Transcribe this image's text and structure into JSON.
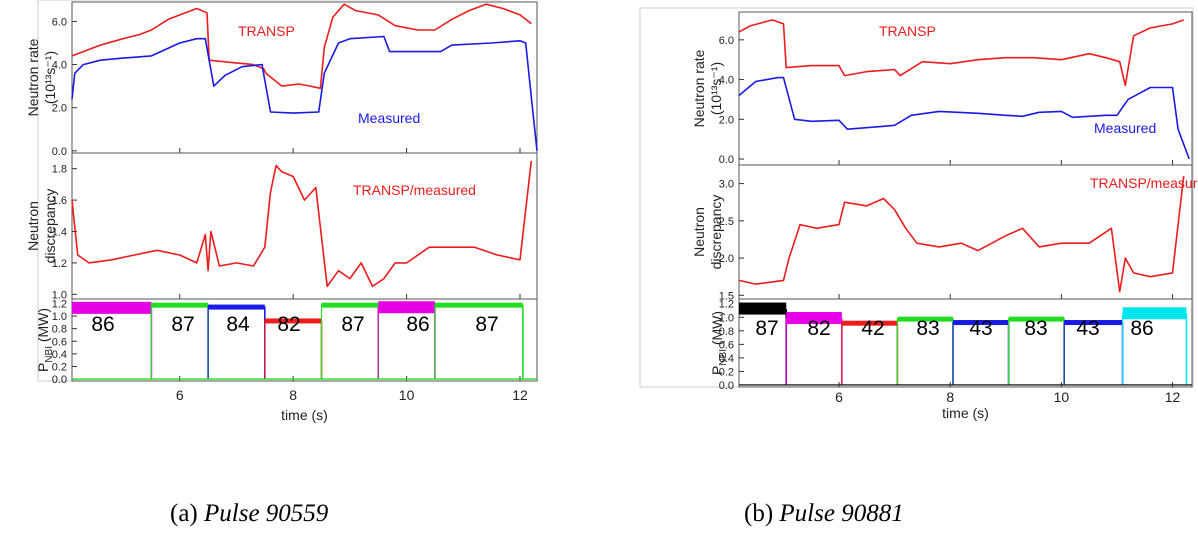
{
  "panels": [
    {
      "caption_prefix": "(a)",
      "caption_title": "Pulse 90559",
      "x_label": "time (s)",
      "x_ticks": [
        "6",
        "8",
        "10",
        "12"
      ],
      "subplots": [
        {
          "y_label_lines": [
            "Neutron rate",
            "(10¹³s⁻¹)"
          ],
          "y_ticks": [
            "0.0",
            "2.0",
            "4.0",
            "6.0"
          ],
          "annotations": [
            {
              "text": "TRANSP",
              "color": "#ee1c1c"
            },
            {
              "text": "Measured",
              "color": "#1a1ae6"
            }
          ]
        },
        {
          "y_label_lines": [
            "Neutron",
            "discrepancy"
          ],
          "y_ticks": [
            "1.0",
            "1.2",
            "1.4",
            "1.6",
            "1.8"
          ],
          "annotations": [
            {
              "text": "TRANSP/measured",
              "color": "#ee1c1c"
            }
          ]
        },
        {
          "y_label_main": "P",
          "y_label_sub": "NBI",
          "y_label_unit": " (MW)",
          "y_ticks": [
            "0.0",
            "0.2",
            "0.4",
            "0.6",
            "0.8",
            "1.0",
            "1.2"
          ],
          "segment_labels": [
            "86",
            "87",
            "84",
            "82",
            "87",
            "86",
            "87"
          ]
        }
      ]
    },
    {
      "caption_prefix": "(b)",
      "caption_title": "Pulse 90881",
      "x_label": "time (s)",
      "x_ticks": [
        "6",
        "8",
        "10",
        "12"
      ],
      "subplots": [
        {
          "y_label_lines": [
            "Neutron rate",
            "(10¹³s⁻¹)"
          ],
          "y_ticks": [
            "0.0",
            "2.0",
            "4.0",
            "6.0"
          ],
          "annotations": [
            {
              "text": "TRANSP",
              "color": "#ee1c1c"
            },
            {
              "text": "Measured",
              "color": "#1a1ae6"
            }
          ]
        },
        {
          "y_label_lines": [
            "Neutron",
            "discrepancy"
          ],
          "y_ticks": [
            "1.5",
            "2.0",
            "2.5",
            "3.0"
          ],
          "annotations": [
            {
              "text": "TRANSP/measured",
              "color": "#ee1c1c"
            }
          ]
        },
        {
          "y_label_main": "P",
          "y_label_sub": "NBI",
          "y_label_unit": " (MW)",
          "y_ticks": [
            "0.0",
            "0.2",
            "0.4",
            "0.6",
            "0.8",
            "1.0",
            "1.2"
          ],
          "segment_labels": [
            "87",
            "82",
            "42",
            "83",
            "43",
            "83",
            "43",
            "86"
          ]
        }
      ]
    }
  ],
  "chart_data": [
    {
      "type": "line",
      "title": "Neutron rate (10¹³s⁻¹) — Pulse 90559",
      "xlabel": "time (s)",
      "ylabel": "Neutron rate (10¹³s⁻¹)",
      "xlim": [
        4.1,
        12.3
      ],
      "ylim": [
        -0.1,
        6.9
      ],
      "series": [
        {
          "name": "TRANSP",
          "color": "#ee1c1c",
          "x": [
            4.1,
            4.3,
            4.6,
            5.0,
            5.3,
            5.5,
            5.8,
            6.1,
            6.3,
            6.48,
            6.52,
            6.9,
            7.3,
            7.48,
            7.52,
            7.8,
            8.1,
            8.3,
            8.48,
            8.55,
            8.7,
            8.9,
            9.1,
            9.5,
            9.8,
            10.2,
            10.5,
            10.8,
            11.1,
            11.4,
            11.7,
            12.0,
            12.2
          ],
          "y": [
            4.4,
            4.6,
            4.9,
            5.2,
            5.4,
            5.6,
            6.1,
            6.4,
            6.6,
            6.4,
            4.2,
            4.1,
            4.0,
            3.8,
            3.6,
            3.0,
            3.1,
            3.0,
            2.9,
            4.8,
            6.2,
            6.8,
            6.5,
            6.3,
            5.8,
            5.6,
            5.6,
            6.1,
            6.5,
            6.8,
            6.6,
            6.3,
            5.9
          ]
        },
        {
          "name": "Measured",
          "color": "#1a1ae6",
          "x": [
            4.1,
            4.15,
            4.3,
            4.6,
            5.0,
            5.5,
            6.0,
            6.3,
            6.45,
            6.6,
            6.8,
            7.1,
            7.45,
            7.6,
            8.0,
            8.45,
            8.55,
            8.8,
            9.0,
            9.6,
            9.7,
            10.2,
            10.6,
            10.8,
            11.5,
            12.0,
            12.1,
            12.2,
            12.3
          ],
          "y": [
            2.4,
            3.6,
            4.0,
            4.2,
            4.3,
            4.4,
            5.0,
            5.2,
            5.2,
            3.0,
            3.5,
            3.9,
            4.0,
            1.8,
            1.75,
            1.8,
            3.6,
            5.0,
            5.2,
            5.3,
            4.6,
            4.6,
            4.6,
            4.9,
            5.0,
            5.1,
            5.0,
            2.5,
            0.0
          ]
        }
      ]
    },
    {
      "type": "line",
      "title": "Neutron discrepancy — Pulse 90559",
      "xlabel": "time (s)",
      "ylabel": "Neutron discrepancy",
      "xlim": [
        4.1,
        12.3
      ],
      "ylim": [
        0.97,
        1.9
      ],
      "series": [
        {
          "name": "TRANSP/measured",
          "color": "#ee1c1c",
          "x": [
            4.1,
            4.2,
            4.4,
            4.8,
            5.2,
            5.6,
            6.0,
            6.3,
            6.45,
            6.5,
            6.55,
            6.7,
            7.0,
            7.3,
            7.5,
            7.6,
            7.7,
            7.8,
            8.0,
            8.2,
            8.4,
            8.6,
            8.8,
            9.0,
            9.2,
            9.4,
            9.6,
            9.8,
            10.0,
            10.4,
            10.8,
            11.2,
            11.6,
            12.0,
            12.2
          ],
          "y": [
            1.6,
            1.25,
            1.2,
            1.22,
            1.25,
            1.28,
            1.25,
            1.2,
            1.38,
            1.15,
            1.4,
            1.18,
            1.2,
            1.18,
            1.3,
            1.65,
            1.82,
            1.78,
            1.75,
            1.6,
            1.68,
            1.05,
            1.15,
            1.1,
            1.2,
            1.05,
            1.1,
            1.2,
            1.2,
            1.3,
            1.3,
            1.3,
            1.25,
            1.22,
            1.85
          ]
        }
      ]
    },
    {
      "type": "line",
      "title": "P_NBI (MW) — Pulse 90559",
      "xlabel": "time (s)",
      "ylabel": "P_NBI (MW)",
      "xlim": [
        4.1,
        12.3
      ],
      "ylim": [
        -0.03,
        1.27
      ],
      "series": [
        {
          "name": "86",
          "color": "#e600e6",
          "x": [
            4.1,
            5.5
          ],
          "y": [
            1.12,
            1.12
          ]
        },
        {
          "name": "87",
          "color": "#22dd22",
          "x": [
            5.5,
            6.5
          ],
          "y": [
            1.18,
            1.18
          ]
        },
        {
          "name": "84",
          "color": "#1a1ae6",
          "x": [
            6.5,
            7.5
          ],
          "y": [
            1.15,
            1.15
          ]
        },
        {
          "name": "82",
          "color": "#ee1c1c",
          "x": [
            7.5,
            8.5
          ],
          "y": [
            0.93,
            0.93
          ]
        },
        {
          "name": "87",
          "color": "#22dd22",
          "x": [
            8.5,
            9.5
          ],
          "y": [
            1.18,
            1.18
          ]
        },
        {
          "name": "86",
          "color": "#e600e6",
          "x": [
            9.5,
            10.5
          ],
          "y": [
            1.13,
            1.13
          ]
        },
        {
          "name": "87",
          "color": "#22dd22",
          "x": [
            10.5,
            12.05
          ],
          "y": [
            1.18,
            1.18
          ]
        }
      ]
    },
    {
      "type": "line",
      "title": "Neutron rate (10¹³s⁻¹) — Pulse 90881",
      "xlabel": "time (s)",
      "ylabel": "Neutron rate (10¹³s⁻¹)",
      "xlim": [
        4.2,
        12.35
      ],
      "ylim": [
        -0.3,
        7.4
      ],
      "series": [
        {
          "name": "TRANSP",
          "color": "#ee1c1c",
          "x": [
            4.2,
            4.4,
            4.8,
            5.0,
            5.05,
            5.5,
            6.0,
            6.1,
            6.5,
            7.0,
            7.1,
            7.5,
            8.0,
            8.5,
            9.0,
            9.5,
            10.0,
            10.5,
            10.8,
            11.05,
            11.15,
            11.3,
            11.6,
            12.0,
            12.2
          ],
          "y": [
            6.4,
            6.7,
            7.0,
            6.8,
            4.6,
            4.7,
            4.7,
            4.2,
            4.4,
            4.5,
            4.2,
            4.9,
            4.8,
            5.0,
            5.1,
            5.1,
            5.0,
            5.3,
            5.1,
            4.9,
            3.7,
            6.2,
            6.6,
            6.8,
            7.0
          ]
        },
        {
          "name": "Measured",
          "color": "#1a1ae6",
          "x": [
            4.2,
            4.5,
            4.9,
            5.0,
            5.2,
            5.5,
            6.0,
            6.15,
            6.8,
            7.0,
            7.3,
            7.8,
            8.5,
            9.0,
            9.3,
            9.6,
            10.0,
            10.2,
            10.8,
            11.0,
            11.2,
            11.6,
            12.0,
            12.1,
            12.3
          ],
          "y": [
            3.2,
            3.9,
            4.1,
            4.1,
            2.0,
            1.9,
            1.95,
            1.5,
            1.65,
            1.7,
            2.2,
            2.4,
            2.3,
            2.2,
            2.15,
            2.35,
            2.4,
            2.1,
            2.2,
            2.2,
            3.0,
            3.6,
            3.6,
            1.5,
            0.0
          ]
        }
      ]
    },
    {
      "type": "line",
      "title": "Neutron discrepancy — Pulse 90881",
      "xlabel": "time (s)",
      "ylabel": "Neutron discrepancy",
      "xlim": [
        4.2,
        12.35
      ],
      "ylim": [
        1.45,
        3.25
      ],
      "series": [
        {
          "name": "TRANSP/measured",
          "color": "#ee1c1c",
          "x": [
            4.2,
            4.5,
            4.8,
            5.0,
            5.1,
            5.3,
            5.6,
            6.0,
            6.1,
            6.5,
            6.8,
            7.0,
            7.2,
            7.4,
            7.8,
            8.2,
            8.5,
            9.0,
            9.3,
            9.6,
            10.0,
            10.5,
            10.9,
            11.05,
            11.15,
            11.3,
            11.6,
            12.0,
            12.2
          ],
          "y": [
            1.7,
            1.65,
            1.68,
            1.7,
            2.0,
            2.45,
            2.4,
            2.45,
            2.75,
            2.7,
            2.8,
            2.65,
            2.4,
            2.2,
            2.15,
            2.2,
            2.1,
            2.3,
            2.4,
            2.15,
            2.2,
            2.2,
            2.4,
            1.55,
            2.0,
            1.8,
            1.75,
            1.8,
            3.1
          ]
        }
      ]
    },
    {
      "type": "line",
      "title": "P_NBI (MW) — Pulse 90881",
      "xlabel": "time (s)",
      "ylabel": "P_NBI (MW)",
      "xlim": [
        4.2,
        12.35
      ],
      "ylim": [
        -0.03,
        1.27
      ],
      "series": [
        {
          "name": "87",
          "color": "#000000",
          "x": [
            4.2,
            5.05
          ],
          "y": [
            1.12,
            1.12
          ]
        },
        {
          "name": "82",
          "color": "#e600e6",
          "x": [
            5.05,
            6.05
          ],
          "y": [
            0.98,
            0.98
          ]
        },
        {
          "name": "42",
          "color": "#ee1c1c",
          "x": [
            6.05,
            7.05
          ],
          "y": [
            0.92,
            0.92
          ]
        },
        {
          "name": "83",
          "color": "#22dd22",
          "x": [
            7.05,
            8.05
          ],
          "y": [
            0.98,
            0.98
          ]
        },
        {
          "name": "43",
          "color": "#1a1ae6",
          "x": [
            8.05,
            9.05
          ],
          "y": [
            0.93,
            0.93
          ]
        },
        {
          "name": "83",
          "color": "#22dd22",
          "x": [
            9.05,
            10.05
          ],
          "y": [
            0.98,
            0.98
          ]
        },
        {
          "name": "43",
          "color": "#1a1ae6",
          "x": [
            10.05,
            11.1
          ],
          "y": [
            0.93,
            0.93
          ]
        },
        {
          "name": "86",
          "color": "#00e5ee",
          "x": [
            11.1,
            12.25
          ],
          "y": [
            1.05,
            1.05
          ]
        }
      ]
    }
  ]
}
